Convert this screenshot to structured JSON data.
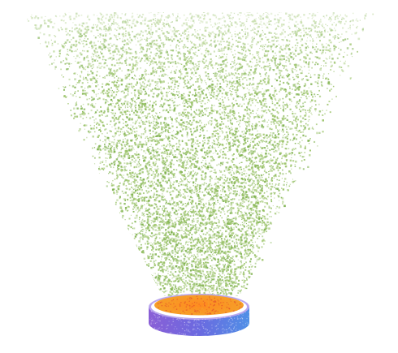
{
  "colors": {
    "background": "#ffffff",
    "spray": "#9cc46a",
    "spray_dark": "#7fb24f",
    "dish_inner_center": "#ff8a1f",
    "dish_inner_edge": "#f4a22a",
    "dish_inner_speckle": "#e2502a",
    "dish_rim_inner": "#ffffff",
    "dish_band_left": "#8a5fd6",
    "dish_band_mid": "#6b6ae0",
    "dish_band_right": "#4f8fe6",
    "dish_band_top_edge": "#b9a6ee"
  },
  "icons": {
    "emitter": "dish-icon",
    "particles": "particle-spray"
  }
}
